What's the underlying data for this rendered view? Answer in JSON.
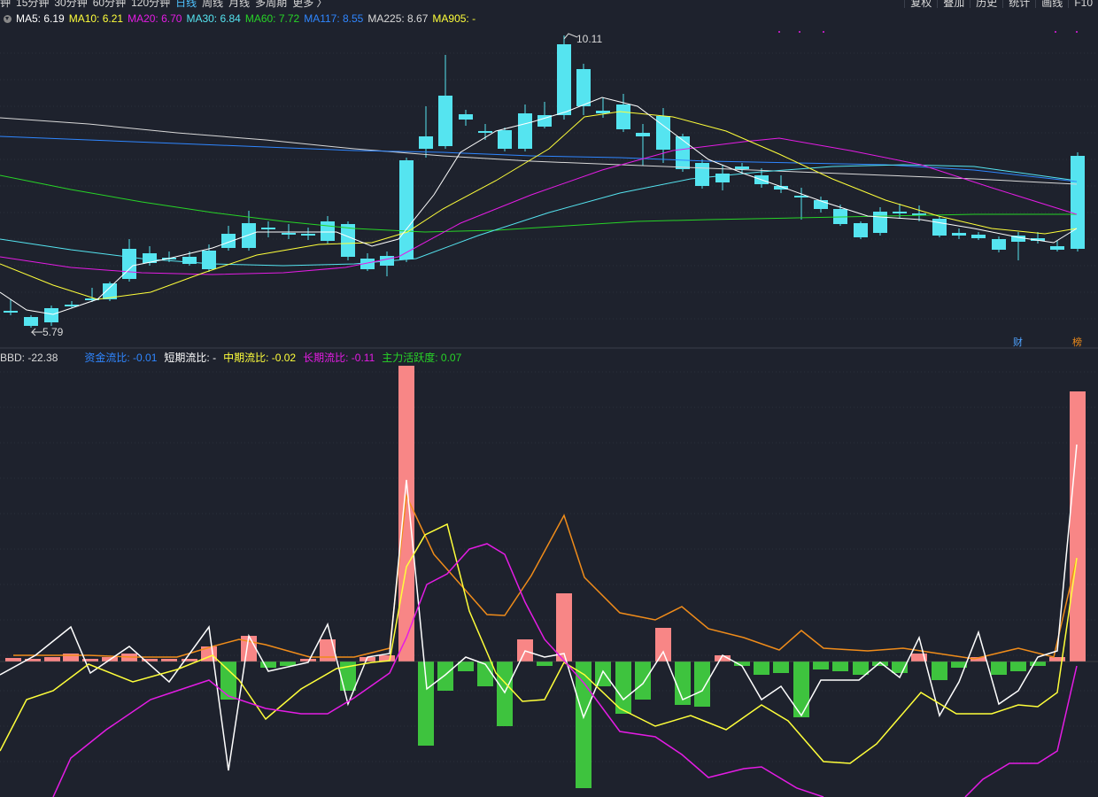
{
  "periods": {
    "items": [
      "钟",
      "15分钟",
      "30分钟",
      "60分钟",
      "120分钟",
      "日线",
      "周线",
      "月线",
      "多周期",
      "更多 〉"
    ],
    "active": "日线"
  },
  "toolbar": {
    "items": [
      "复权",
      "叠加",
      "历史",
      "统计",
      "画线",
      "F10"
    ]
  },
  "ma_legend": [
    {
      "label": "MA5:",
      "value": "6.19",
      "color": "#ffffff"
    },
    {
      "label": "MA10:",
      "value": "6.21",
      "color": "#ffff3a"
    },
    {
      "label": "MA20:",
      "value": "6.70",
      "color": "#e41ce4"
    },
    {
      "label": "MA30:",
      "value": "6.84",
      "color": "#55e4f0"
    },
    {
      "label": "MA60:",
      "value": "7.72",
      "color": "#27d427"
    },
    {
      "label": "MA117:",
      "value": "8.55",
      "color": "#2f86ff"
    },
    {
      "label": "MA225:",
      "value": "8.67",
      "color": "#d9d9d9"
    },
    {
      "label": "MA905:",
      "value": "-",
      "color": "#ffff3a"
    }
  ],
  "indicator_legend": [
    {
      "label": "BBD:",
      "value": "-22.38",
      "color": "#d9d9d9"
    },
    {
      "label": "资金流比:",
      "value": "-0.01",
      "color": "#2f86ff"
    },
    {
      "label": "短期流比:",
      "value": "-",
      "color": "#ffffff"
    },
    {
      "label": "中期流比:",
      "value": "-0.02",
      "color": "#ffff3a"
    },
    {
      "label": "长期流比:",
      "value": "-0.11",
      "color": "#e41ce4"
    },
    {
      "label": "主力活跃度:",
      "value": "0.07",
      "color": "#27d427"
    }
  ],
  "annotations": {
    "high": "10.11",
    "low": "5.79"
  },
  "badges": {
    "finance": "财",
    "rank": "榜"
  },
  "colors": {
    "bg": "#1e222d",
    "up": "#e0393c",
    "down": "#55e4f0",
    "ma5": "#ffffff",
    "ma10": "#ffff3a",
    "ma20": "#e41ce4",
    "ma30": "#55e4f0",
    "ma60": "#27d427",
    "ma117": "#2f86ff",
    "ma225": "#d9d9d9",
    "bar_pos": "#f88686",
    "bar_neg": "#3ec33e",
    "orange": "#f08c1a"
  }
}
